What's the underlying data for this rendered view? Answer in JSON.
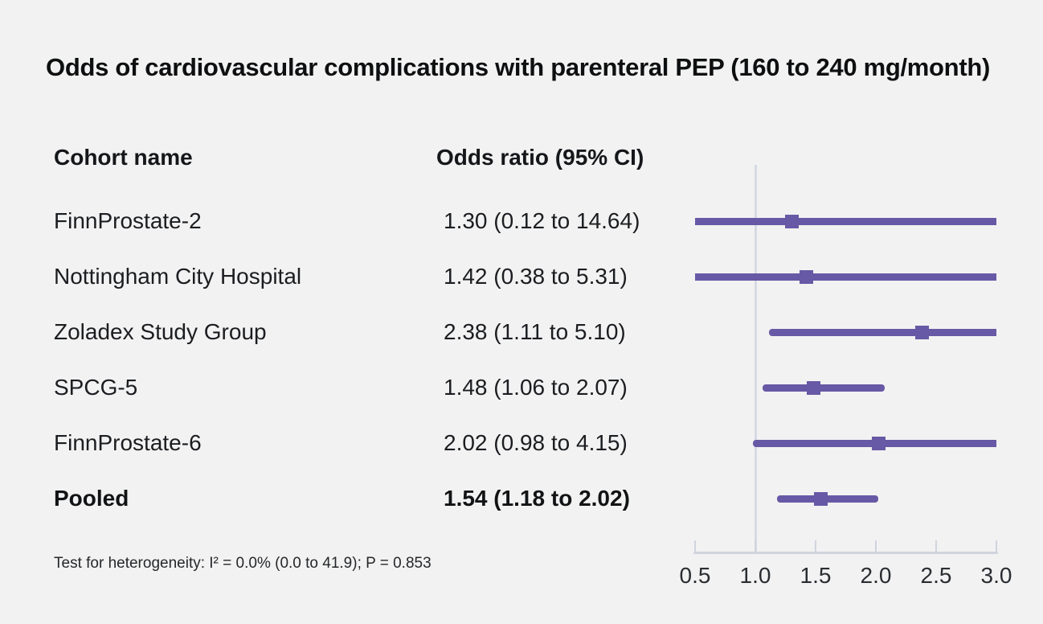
{
  "title": "Odds of cardiovascular complications with parenteral PEP (160 to 240 mg/month)",
  "table": {
    "col1_header": "Cohort name",
    "col2_header": "Odds ratio (95% CI)",
    "rows": [
      {
        "name": "FinnProstate-2",
        "or_text": "1.30 (0.12 to 14.64)"
      },
      {
        "name": "Nottingham City Hospital",
        "or_text": "1.42 (0.38 to 5.31)"
      },
      {
        "name": "Zoladex Study Group",
        "or_text": "2.38 (1.11 to 5.10)"
      },
      {
        "name": "SPCG-5",
        "or_text": "1.48 (1.06 to 2.07)"
      },
      {
        "name": "FinnProstate-6",
        "or_text": "2.02 (0.98 to 4.15)"
      },
      {
        "name": "Pooled",
        "or_text": "1.54 (1.18 to 2.02)"
      }
    ]
  },
  "footnote": "Test for heterogeneity: I² = 0.0% (0.0 to 41.9); P = 0.853",
  "chart_data": {
    "type": "forest",
    "title": "Odds of cardiovascular complications with parenteral PEP (160 to 240 mg/month)",
    "x_ticks": [
      0.5,
      1.0,
      1.5,
      2.0,
      2.5,
      3.0
    ],
    "x_range": [
      0.5,
      3.0
    ],
    "ref_line": 1.0,
    "grid": false,
    "studies": [
      {
        "label": "FinnProstate-2",
        "estimate": 1.3,
        "ci_low": 0.12,
        "ci_high": 14.64,
        "pooled": false
      },
      {
        "label": "Nottingham City Hospital",
        "estimate": 1.42,
        "ci_low": 0.38,
        "ci_high": 5.31,
        "pooled": false
      },
      {
        "label": "Zoladex Study Group",
        "estimate": 2.38,
        "ci_low": 1.11,
        "ci_high": 5.1,
        "pooled": false
      },
      {
        "label": "SPCG-5",
        "estimate": 1.48,
        "ci_low": 1.06,
        "ci_high": 2.07,
        "pooled": false
      },
      {
        "label": "FinnProstate-6",
        "estimate": 2.02,
        "ci_low": 0.98,
        "ci_high": 4.15,
        "pooled": false
      },
      {
        "label": "Pooled",
        "estimate": 1.54,
        "ci_low": 1.18,
        "ci_high": 2.02,
        "pooled": true
      }
    ],
    "heterogeneity_note": "Test for heterogeneity: I² = 0.0% (0.0 to 41.9); P = 0.853"
  },
  "colors": {
    "background": "#f2f2f2",
    "accent_purple": "#6759a5",
    "axis_gray": "#cfd4dd",
    "ref_line_gray": "#d6dae3",
    "text_dark": "#17191c"
  }
}
